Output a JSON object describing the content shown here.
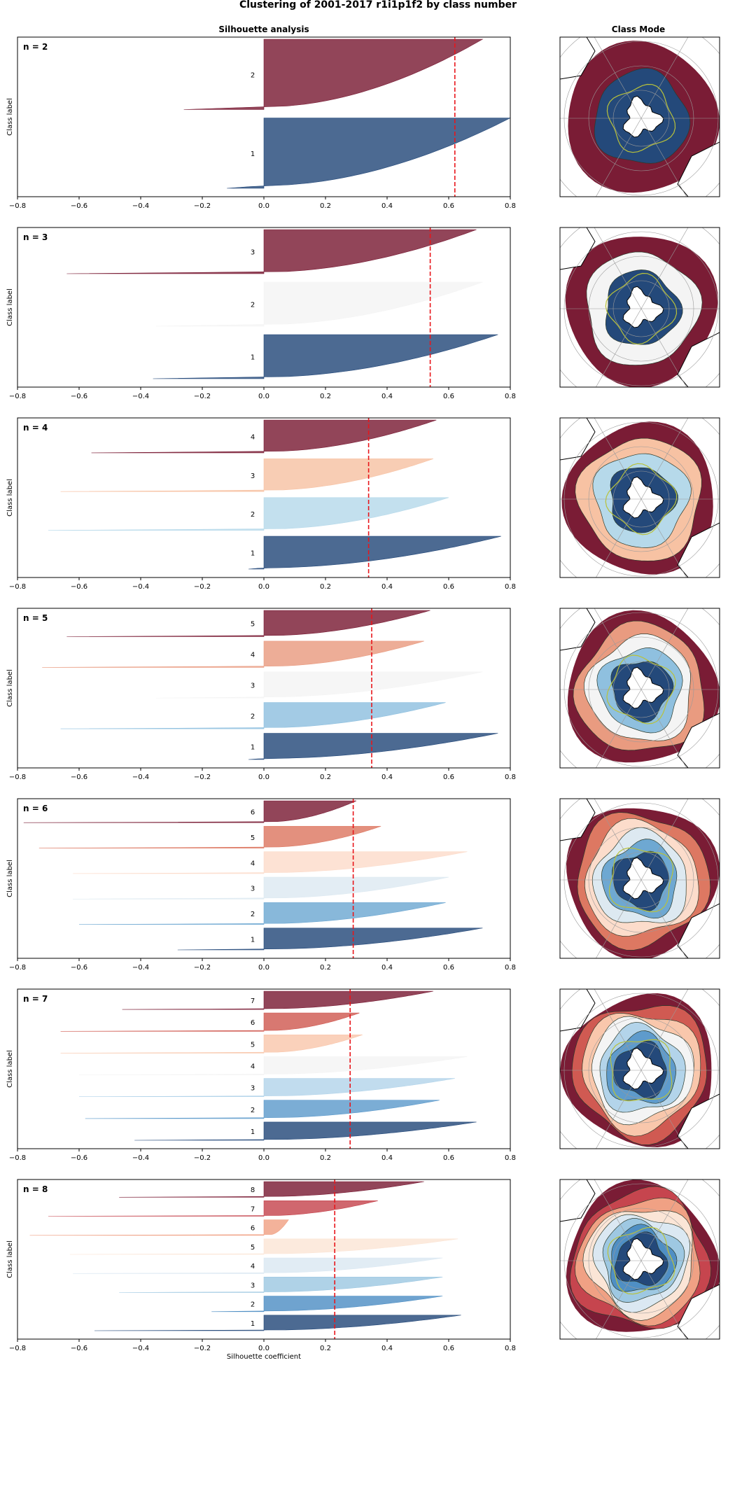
{
  "figure": {
    "suptitle": "Clustering of 2001-2017 r1i1p1f2 by class number",
    "left_column_title": "Silhouette analysis",
    "right_column_title": "Class Mode",
    "ylabel": "Class label",
    "xlabel": "Silhouette coefficient"
  },
  "chart_data": [
    {
      "type": "area",
      "title": "n = 2",
      "xlim": [
        -0.8,
        0.8
      ],
      "xticks": [
        "−0.8",
        "−0.6",
        "−0.4",
        "−0.2",
        "0.0",
        "0.2",
        "0.4",
        "0.6",
        "0.8"
      ],
      "average_silhouette": 0.62,
      "clusters": [
        {
          "label": "1",
          "color": "#24497a",
          "min": -0.12,
          "max": 0.8
        },
        {
          "label": "2",
          "color": "#7a1c35",
          "min": -0.26,
          "max": 0.71
        }
      ],
      "class_mode_colors": [
        "#24497a",
        "#7a1c35"
      ]
    },
    {
      "type": "area",
      "title": "n = 3",
      "xlim": [
        -0.8,
        0.8
      ],
      "xticks": [
        "−0.8",
        "−0.6",
        "−0.4",
        "−0.2",
        "0.0",
        "0.2",
        "0.4",
        "0.6",
        "0.8"
      ],
      "average_silhouette": 0.54,
      "clusters": [
        {
          "label": "1",
          "color": "#24497a",
          "min": -0.36,
          "max": 0.76
        },
        {
          "label": "2",
          "color": "#f4f4f4",
          "min": -0.35,
          "max": 0.71
        },
        {
          "label": "3",
          "color": "#7a1c35",
          "min": -0.64,
          "max": 0.69
        }
      ],
      "class_mode_colors": [
        "#24497a",
        "#f4f4f4",
        "#7a1c35"
      ]
    },
    {
      "type": "area",
      "title": "n = 4",
      "xlim": [
        -0.8,
        0.8
      ],
      "xticks": [
        "−0.8",
        "−0.6",
        "−0.4",
        "−0.2",
        "0.0",
        "0.2",
        "0.4",
        "0.6",
        "0.8"
      ],
      "average_silhouette": 0.34,
      "clusters": [
        {
          "label": "1",
          "color": "#24497a",
          "min": -0.05,
          "max": 0.77
        },
        {
          "label": "2",
          "color": "#b6d9ea",
          "min": -0.7,
          "max": 0.6
        },
        {
          "label": "3",
          "color": "#f7c2a3",
          "min": -0.66,
          "max": 0.55
        },
        {
          "label": "4",
          "color": "#7a1c35",
          "min": -0.56,
          "max": 0.56
        }
      ],
      "class_mode_colors": [
        "#24497a",
        "#b6d9ea",
        "#f7c2a3",
        "#7a1c35"
      ]
    },
    {
      "type": "area",
      "title": "n = 5",
      "xlim": [
        -0.8,
        0.8
      ],
      "xticks": [
        "−0.8",
        "−0.6",
        "−0.4",
        "−0.2",
        "0.0",
        "0.2",
        "0.4",
        "0.6",
        "0.8"
      ],
      "average_silhouette": 0.35,
      "clusters": [
        {
          "label": "1",
          "color": "#24497a",
          "min": -0.05,
          "max": 0.76
        },
        {
          "label": "2",
          "color": "#8fc0df",
          "min": -0.66,
          "max": 0.59
        },
        {
          "label": "3",
          "color": "#f4f4f4",
          "min": -0.35,
          "max": 0.71
        },
        {
          "label": "4",
          "color": "#e99b80",
          "min": -0.72,
          "max": 0.52
        },
        {
          "label": "5",
          "color": "#7a1c35",
          "min": -0.64,
          "max": 0.54
        }
      ],
      "class_mode_colors": [
        "#24497a",
        "#8fc0df",
        "#f4f4f4",
        "#e99b80",
        "#7a1c35"
      ]
    },
    {
      "type": "area",
      "title": "n = 6",
      "xlim": [
        -0.8,
        0.8
      ],
      "xticks": [
        "−0.8",
        "−0.6",
        "−0.4",
        "−0.2",
        "0.0",
        "0.2",
        "0.4",
        "0.6",
        "0.8"
      ],
      "average_silhouette": 0.29,
      "clusters": [
        {
          "label": "1",
          "color": "#24497a",
          "min": -0.28,
          "max": 0.71
        },
        {
          "label": "2",
          "color": "#6ea8d2",
          "min": -0.6,
          "max": 0.59
        },
        {
          "label": "3",
          "color": "#dde9f1",
          "min": -0.62,
          "max": 0.6
        },
        {
          "label": "4",
          "color": "#fcdccb",
          "min": -0.62,
          "max": 0.66
        },
        {
          "label": "5",
          "color": "#dd7862",
          "min": -0.73,
          "max": 0.38
        },
        {
          "label": "6",
          "color": "#7a1c35",
          "min": -0.78,
          "max": 0.3
        }
      ],
      "class_mode_colors": [
        "#24497a",
        "#6ea8d2",
        "#dde9f1",
        "#fcdccb",
        "#dd7862",
        "#7a1c35"
      ]
    },
    {
      "type": "area",
      "title": "n = 7",
      "xlim": [
        -0.8,
        0.8
      ],
      "xticks": [
        "−0.8",
        "−0.6",
        "−0.4",
        "−0.2",
        "0.0",
        "0.2",
        "0.4",
        "0.6",
        "0.8"
      ],
      "average_silhouette": 0.28,
      "clusters": [
        {
          "label": "1",
          "color": "#24497a",
          "min": -0.42,
          "max": 0.69
        },
        {
          "label": "2",
          "color": "#5e9bcc",
          "min": -0.58,
          "max": 0.57
        },
        {
          "label": "3",
          "color": "#b3d4ea",
          "min": -0.6,
          "max": 0.62
        },
        {
          "label": "4",
          "color": "#f4f4f4",
          "min": -0.6,
          "max": 0.66
        },
        {
          "label": "5",
          "color": "#f9c7ac",
          "min": -0.66,
          "max": 0.32
        },
        {
          "label": "6",
          "color": "#d05a52",
          "min": -0.66,
          "max": 0.31
        },
        {
          "label": "7",
          "color": "#7a1c35",
          "min": -0.46,
          "max": 0.55
        }
      ],
      "class_mode_colors": [
        "#24497a",
        "#5e9bcc",
        "#b3d4ea",
        "#f4f4f4",
        "#f9c7ac",
        "#d05a52",
        "#7a1c35"
      ]
    },
    {
      "type": "area",
      "title": "n = 8",
      "xlim": [
        -0.8,
        0.8
      ],
      "xticks": [
        "−0.8",
        "−0.6",
        "−0.4",
        "−0.2",
        "0.0",
        "0.2",
        "0.4",
        "0.6",
        "0.8"
      ],
      "average_silhouette": 0.23,
      "clusters": [
        {
          "label": "1",
          "color": "#24497a",
          "min": -0.55,
          "max": 0.64
        },
        {
          "label": "2",
          "color": "#4f8fc4",
          "min": -0.17,
          "max": 0.58
        },
        {
          "label": "3",
          "color": "#9ec8e2",
          "min": -0.47,
          "max": 0.58
        },
        {
          "label": "4",
          "color": "#dbe8f2",
          "min": -0.62,
          "max": 0.58
        },
        {
          "label": "5",
          "color": "#fbe5d6",
          "min": -0.63,
          "max": 0.63
        },
        {
          "label": "6",
          "color": "#f0a184",
          "min": -0.76,
          "max": 0.08
        },
        {
          "label": "7",
          "color": "#c6454e",
          "min": -0.7,
          "max": 0.37
        },
        {
          "label": "8",
          "color": "#7a1c35",
          "min": -0.47,
          "max": 0.52
        }
      ],
      "class_mode_colors": [
        "#24497a",
        "#4f8fc4",
        "#9ec8e2",
        "#dbe8f2",
        "#fbe5d6",
        "#f0a184",
        "#c6454e",
        "#7a1c35"
      ]
    }
  ]
}
